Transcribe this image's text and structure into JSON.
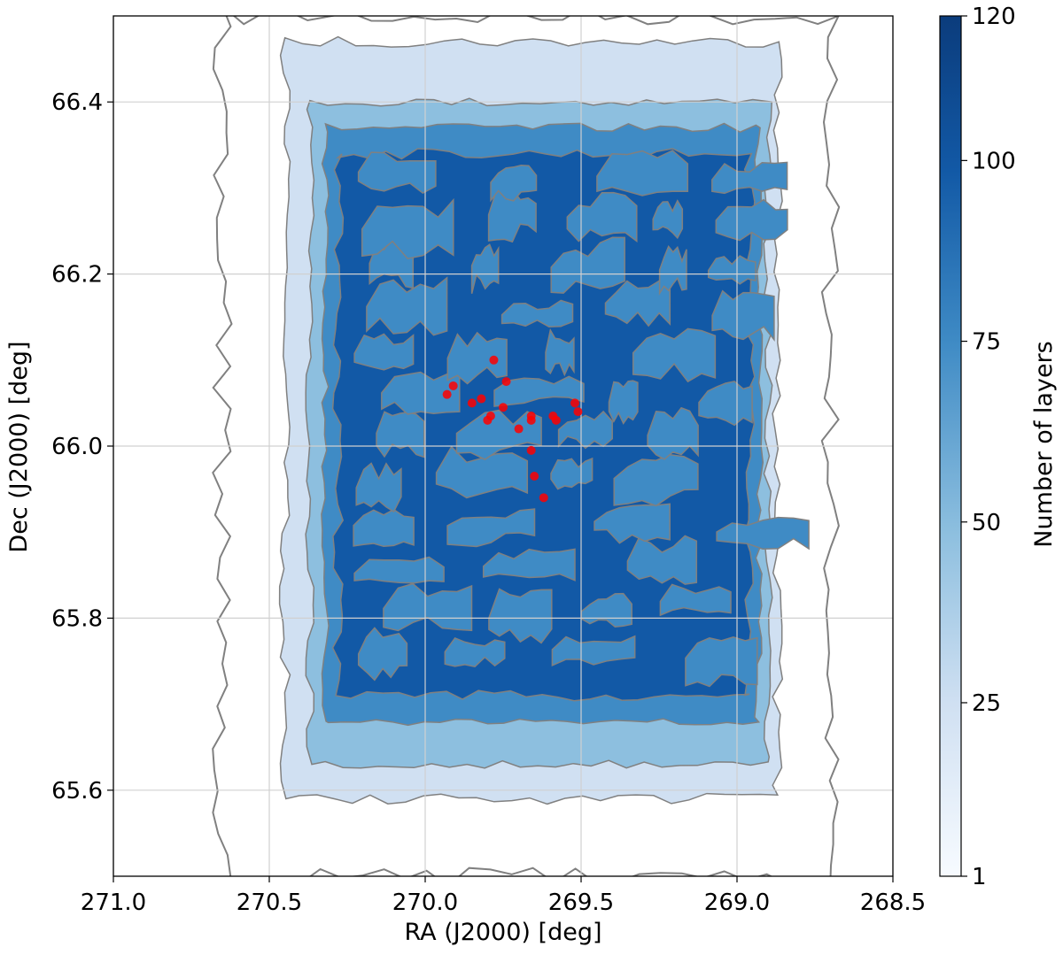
{
  "chart_data": {
    "type": "contour",
    "xlabel": "RA (J2000) [deg]",
    "ylabel": "Dec (J2000) [deg]",
    "xlim": [
      271.0,
      268.5
    ],
    "ylim": [
      65.5,
      66.5
    ],
    "x_inverted": true,
    "xticks": [
      271.0,
      270.5,
      270.0,
      269.5,
      269.0,
      268.5
    ],
    "xtick_labels": [
      "271.0",
      "270.5",
      "270.0",
      "269.5",
      "269.0",
      "268.5"
    ],
    "yticks": [
      65.6,
      65.8,
      66.0,
      66.2,
      66.4
    ],
    "ytick_labels": [
      "65.6",
      "65.8",
      "66.0",
      "66.2",
      "66.4"
    ],
    "grid": true,
    "colorbar": {
      "label": "Number of layers",
      "range": [
        1,
        120
      ],
      "ticks": [
        1,
        25,
        50,
        75,
        100,
        120
      ],
      "tick_labels": [
        "1",
        "25",
        "50",
        "75",
        "100",
        "120"
      ],
      "colormap": "Blues"
    },
    "contour_levels": [
      1,
      25,
      50,
      75,
      100,
      120
    ],
    "level_colors": [
      "#ffffff",
      "#d0e0f2",
      "#8dbfdf",
      "#3f8bc5",
      "#1259a6",
      "#0b3c7c"
    ],
    "region_outer_bounds": {
      "level_1": {
        "ra": [
          270.65,
          268.7
        ],
        "dec": [
          65.5,
          66.5
        ]
      },
      "level_25": {
        "ra": [
          270.45,
          268.87
        ],
        "dec": [
          65.59,
          66.47
        ]
      },
      "level_50": {
        "ra": [
          270.37,
          268.9
        ],
        "dec": [
          65.63,
          66.4
        ]
      },
      "level_75": {
        "ra": [
          270.32,
          268.93
        ],
        "dec": [
          65.68,
          66.37
        ]
      },
      "level_100": {
        "ra": [
          270.28,
          268.96
        ],
        "dec": [
          65.71,
          66.34
        ]
      }
    },
    "points": {
      "color": "#ff0000",
      "ra": [
        269.78,
        269.74,
        269.91,
        269.93,
        269.82,
        269.85,
        269.75,
        269.79,
        269.8,
        269.7,
        269.66,
        269.66,
        269.59,
        269.58,
        269.52,
        269.51,
        269.66,
        269.65,
        269.62
      ],
      "dec": [
        66.1,
        66.075,
        66.07,
        66.06,
        66.055,
        66.05,
        66.045,
        66.035,
        66.03,
        66.02,
        66.035,
        66.03,
        66.035,
        66.03,
        66.05,
        66.04,
        65.995,
        65.965,
        65.94
      ]
    }
  }
}
